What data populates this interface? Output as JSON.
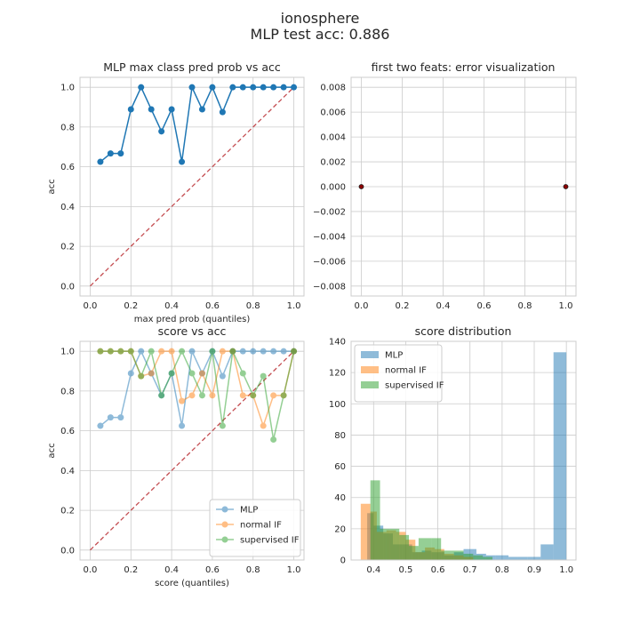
{
  "suptitle": [
    "ionosphere",
    "MLP test acc: 0.886"
  ],
  "colors": {
    "blue": "#1f77b4",
    "orange": "#ff7f0e",
    "green": "#2ca02c",
    "red_dash": "#c44e52",
    "grid": "#cccccc",
    "spine": "#cccccc"
  },
  "chart_data": [
    {
      "type": "line",
      "title": "MLP max class pred prob vs acc",
      "xlabel": "max pred prob (quantiles)",
      "ylabel": "acc",
      "xlim": [
        -0.05,
        1.05
      ],
      "ylim": [
        -0.05,
        1.05
      ],
      "xticks": [
        0.0,
        0.2,
        0.4,
        0.6,
        0.8,
        1.0
      ],
      "yticks": [
        0.0,
        0.2,
        0.4,
        0.6,
        0.8,
        1.0
      ],
      "xtick_labels": [
        "0.0",
        "0.2",
        "0.4",
        "0.6",
        "0.8",
        "1.0"
      ],
      "ytick_labels": [
        "0.0",
        "0.2",
        "0.4",
        "0.6",
        "0.8",
        "1.0"
      ],
      "diagonal": true,
      "series": [
        {
          "color": "#1f77b4",
          "alpha": 1,
          "marker": true,
          "x": [
            0.05,
            0.1,
            0.15,
            0.2,
            0.25,
            0.3,
            0.35,
            0.4,
            0.45,
            0.5,
            0.55,
            0.6,
            0.65,
            0.7,
            0.75,
            0.8,
            0.85,
            0.9,
            0.95,
            1.0
          ],
          "y": [
            0.625,
            0.667,
            0.667,
            0.889,
            1.0,
            0.889,
            0.778,
            0.889,
            0.625,
            1.0,
            0.889,
            1.0,
            0.875,
            1.0,
            1.0,
            1.0,
            1.0,
            1.0,
            1.0,
            1.0
          ]
        }
      ]
    },
    {
      "type": "scatter",
      "title": "first two feats: error visualization",
      "xlim": [
        -0.05,
        1.05
      ],
      "ylim": [
        -0.0088,
        0.0088
      ],
      "xticks": [
        0.0,
        0.2,
        0.4,
        0.6,
        0.8,
        1.0
      ],
      "yticks": [
        -0.008,
        -0.006,
        -0.004,
        -0.002,
        0.0,
        0.002,
        0.004,
        0.006,
        0.008
      ],
      "xtick_labels": [
        "0.0",
        "0.2",
        "0.4",
        "0.6",
        "0.8",
        "1.0"
      ],
      "ytick_labels": [
        "−0.008",
        "−0.006",
        "−0.004",
        "−0.002",
        "0.000",
        "0.002",
        "0.004",
        "0.006",
        "0.008"
      ],
      "points": [
        {
          "x": 0.0,
          "y": 0.0
        },
        {
          "x": 1.0,
          "y": 0.0
        }
      ]
    },
    {
      "type": "line",
      "title": "score vs acc",
      "xlabel": "score (quantiles)",
      "ylabel": "acc",
      "xlim": [
        -0.05,
        1.05
      ],
      "ylim": [
        -0.05,
        1.05
      ],
      "xticks": [
        0.0,
        0.2,
        0.4,
        0.6,
        0.8,
        1.0
      ],
      "yticks": [
        0.0,
        0.2,
        0.4,
        0.6,
        0.8,
        1.0
      ],
      "xtick_labels": [
        "0.0",
        "0.2",
        "0.4",
        "0.6",
        "0.8",
        "1.0"
      ],
      "ytick_labels": [
        "0.0",
        "0.2",
        "0.4",
        "0.6",
        "0.8",
        "1.0"
      ],
      "diagonal": true,
      "legend": "lower right",
      "series": [
        {
          "name": "MLP",
          "color": "#1f77b4",
          "alpha": 0.5,
          "marker": true,
          "x": [
            0.05,
            0.1,
            0.15,
            0.2,
            0.25,
            0.3,
            0.35,
            0.4,
            0.45,
            0.5,
            0.55,
            0.6,
            0.65,
            0.7,
            0.75,
            0.8,
            0.85,
            0.9,
            0.95,
            1.0
          ],
          "y": [
            0.625,
            0.667,
            0.667,
            0.889,
            1.0,
            0.889,
            0.778,
            0.889,
            0.625,
            1.0,
            0.889,
            1.0,
            0.875,
            1.0,
            1.0,
            1.0,
            1.0,
            1.0,
            1.0,
            1.0
          ]
        },
        {
          "name": "normal IF",
          "color": "#ff7f0e",
          "alpha": 0.5,
          "marker": true,
          "x": [
            0.05,
            0.1,
            0.15,
            0.2,
            0.25,
            0.3,
            0.35,
            0.4,
            0.45,
            0.5,
            0.55,
            0.6,
            0.65,
            0.7,
            0.75,
            0.8,
            0.85,
            0.9,
            0.95,
            1.0
          ],
          "y": [
            1.0,
            1.0,
            1.0,
            1.0,
            0.875,
            0.889,
            1.0,
            1.0,
            0.75,
            0.778,
            0.889,
            0.778,
            1.0,
            1.0,
            0.778,
            0.778,
            0.625,
            0.778,
            0.778,
            1.0
          ]
        },
        {
          "name": "supervised IF",
          "color": "#2ca02c",
          "alpha": 0.5,
          "marker": true,
          "x": [
            0.05,
            0.1,
            0.15,
            0.2,
            0.25,
            0.3,
            0.35,
            0.4,
            0.45,
            0.5,
            0.55,
            0.6,
            0.65,
            0.7,
            0.75,
            0.8,
            0.85,
            0.9,
            0.95,
            1.0
          ],
          "y": [
            1.0,
            1.0,
            1.0,
            1.0,
            0.875,
            1.0,
            0.778,
            0.889,
            1.0,
            0.889,
            0.778,
            1.0,
            0.625,
            1.0,
            0.889,
            0.778,
            0.875,
            0.556,
            0.778,
            1.0
          ]
        }
      ]
    },
    {
      "type": "bar",
      "title": "score distribution",
      "xlim": [
        0.33,
        1.03
      ],
      "ylim": [
        0,
        140
      ],
      "xticks": [
        0.4,
        0.5,
        0.6,
        0.7,
        0.8,
        0.9,
        1.0
      ],
      "yticks": [
        0,
        20,
        40,
        60,
        80,
        100,
        120,
        140
      ],
      "xtick_labels": [
        "0.4",
        "0.5",
        "0.6",
        "0.7",
        "0.8",
        "0.9",
        "1.0"
      ],
      "ytick_labels": [
        "0",
        "20",
        "40",
        "60",
        "80",
        "100",
        "120",
        "140"
      ],
      "legend": "upper left",
      "series": [
        {
          "name": "MLP",
          "color": "#1f77b4",
          "alpha": 0.5,
          "bins": [
            [
              0.38,
              0.4,
              30
            ],
            [
              0.4,
              0.43,
              22
            ],
            [
              0.43,
              0.46,
              17
            ],
            [
              0.46,
              0.49,
              10
            ],
            [
              0.49,
              0.52,
              10
            ],
            [
              0.52,
              0.55,
              5
            ],
            [
              0.55,
              0.58,
              6
            ],
            [
              0.58,
              0.62,
              5
            ],
            [
              0.62,
              0.65,
              3
            ],
            [
              0.65,
              0.68,
              5
            ],
            [
              0.68,
              0.72,
              7
            ],
            [
              0.72,
              0.75,
              4
            ],
            [
              0.75,
              0.78,
              3
            ],
            [
              0.78,
              0.82,
              3
            ],
            [
              0.82,
              0.85,
              2
            ],
            [
              0.85,
              0.88,
              2
            ],
            [
              0.88,
              0.92,
              2
            ],
            [
              0.92,
              0.96,
              10
            ],
            [
              0.96,
              1.0,
              133
            ]
          ]
        },
        {
          "name": "normal IF",
          "color": "#ff7f0e",
          "alpha": 0.5,
          "bins": [
            [
              0.36,
              0.39,
              36
            ],
            [
              0.39,
              0.41,
              31
            ],
            [
              0.41,
              0.44,
              18
            ],
            [
              0.44,
              0.47,
              19
            ],
            [
              0.47,
              0.5,
              18
            ],
            [
              0.5,
              0.53,
              13
            ],
            [
              0.53,
              0.56,
              5
            ],
            [
              0.56,
              0.59,
              8
            ],
            [
              0.59,
              0.62,
              7
            ],
            [
              0.62,
              0.65,
              4
            ],
            [
              0.65,
              0.68,
              3
            ],
            [
              0.68,
              0.71,
              2
            ]
          ]
        },
        {
          "name": "supervised IF",
          "color": "#2ca02c",
          "alpha": 0.5,
          "bins": [
            [
              0.39,
              0.42,
              51
            ],
            [
              0.42,
              0.45,
              20
            ],
            [
              0.45,
              0.48,
              20
            ],
            [
              0.48,
              0.51,
              16
            ],
            [
              0.51,
              0.54,
              9
            ],
            [
              0.54,
              0.58,
              14
            ],
            [
              0.58,
              0.61,
              14
            ],
            [
              0.61,
              0.64,
              6
            ],
            [
              0.64,
              0.68,
              6
            ],
            [
              0.68,
              0.71,
              4
            ],
            [
              0.71,
              0.74,
              3
            ],
            [
              0.74,
              0.77,
              2
            ]
          ]
        }
      ]
    }
  ]
}
